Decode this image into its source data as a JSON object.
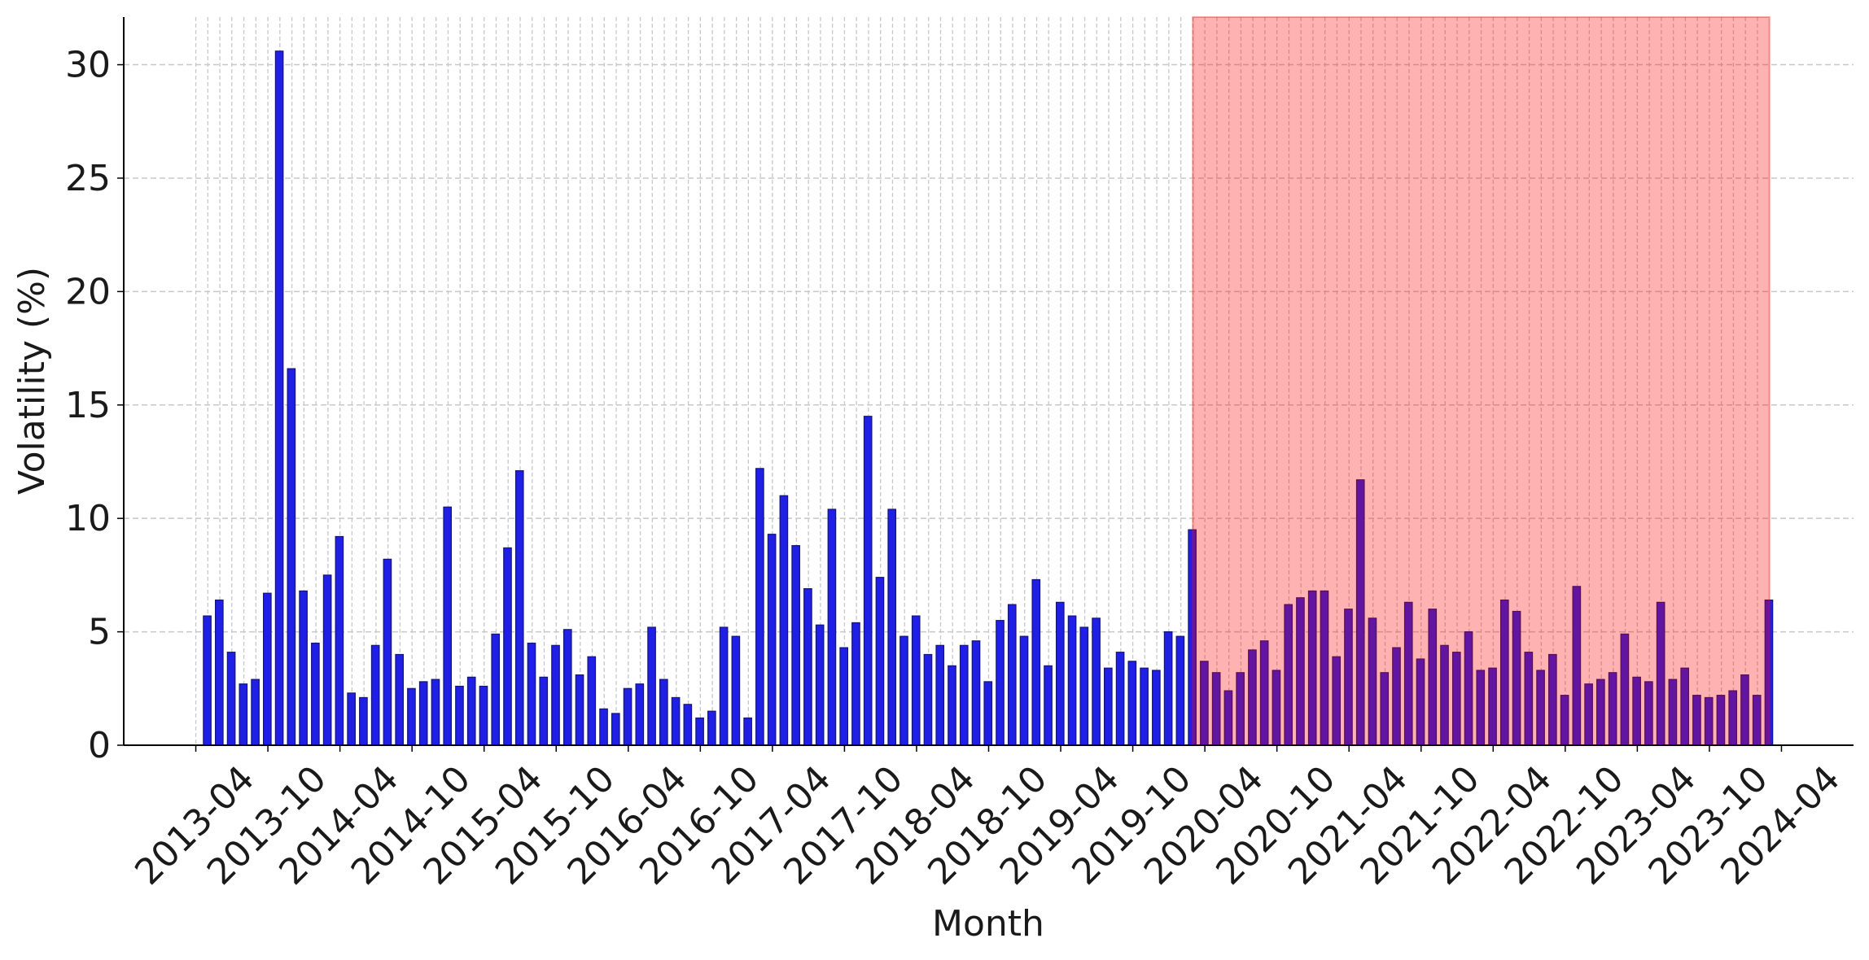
{
  "chart_data": {
    "type": "bar",
    "x_label": "Month",
    "y_label": "Volatility (%)",
    "x": [
      "2013-04",
      "2013-05",
      "2013-06",
      "2013-07",
      "2013-08",
      "2013-09",
      "2013-10",
      "2013-11",
      "2013-12",
      "2014-01",
      "2014-02",
      "2014-03",
      "2014-04",
      "2014-05",
      "2014-06",
      "2014-07",
      "2014-08",
      "2014-09",
      "2014-10",
      "2014-11",
      "2014-12",
      "2015-01",
      "2015-02",
      "2015-03",
      "2015-04",
      "2015-05",
      "2015-06",
      "2015-07",
      "2015-08",
      "2015-09",
      "2015-10",
      "2015-11",
      "2015-12",
      "2016-01",
      "2016-02",
      "2016-03",
      "2016-04",
      "2016-05",
      "2016-06",
      "2016-07",
      "2016-08",
      "2016-09",
      "2016-10",
      "2016-11",
      "2016-12",
      "2017-01",
      "2017-02",
      "2017-03",
      "2017-04",
      "2017-05",
      "2017-06",
      "2017-07",
      "2017-08",
      "2017-09",
      "2017-10",
      "2017-11",
      "2017-12",
      "2018-01",
      "2018-02",
      "2018-03",
      "2018-04",
      "2018-05",
      "2018-06",
      "2018-07",
      "2018-08",
      "2018-09",
      "2018-10",
      "2018-11",
      "2018-12",
      "2019-01",
      "2019-02",
      "2019-03",
      "2019-04",
      "2019-05",
      "2019-06",
      "2019-07",
      "2019-08",
      "2019-09",
      "2019-10",
      "2019-11",
      "2019-12",
      "2020-01",
      "2020-02",
      "2020-03",
      "2020-04",
      "2020-05",
      "2020-06",
      "2020-07",
      "2020-08",
      "2020-09",
      "2020-10",
      "2020-11",
      "2020-12",
      "2021-01",
      "2021-02",
      "2021-03",
      "2021-04",
      "2021-05",
      "2021-06",
      "2021-07",
      "2021-08",
      "2021-09",
      "2021-10",
      "2021-11",
      "2021-12",
      "2022-01",
      "2022-02",
      "2022-03",
      "2022-04",
      "2022-05",
      "2022-06",
      "2022-07",
      "2022-08",
      "2022-09",
      "2022-10",
      "2022-11",
      "2022-12",
      "2023-01",
      "2023-02",
      "2023-03",
      "2023-04",
      "2023-05",
      "2023-06",
      "2023-07",
      "2023-08",
      "2023-09",
      "2023-10",
      "2023-11",
      "2023-12",
      "2024-01",
      "2024-02"
    ],
    "values": [
      5.7,
      6.4,
      4.1,
      2.7,
      2.9,
      6.7,
      30.6,
      16.6,
      6.8,
      4.5,
      7.5,
      9.2,
      2.3,
      2.1,
      4.4,
      8.2,
      4.0,
      2.5,
      2.8,
      2.9,
      10.5,
      2.6,
      3.0,
      2.6,
      4.9,
      8.7,
      12.1,
      4.5,
      3.0,
      4.4,
      5.1,
      3.1,
      3.9,
      1.6,
      1.4,
      2.5,
      2.7,
      5.2,
      2.9,
      2.1,
      1.8,
      1.2,
      1.5,
      5.2,
      4.8,
      1.2,
      12.2,
      9.3,
      11.0,
      8.8,
      6.9,
      5.3,
      10.4,
      4.3,
      5.4,
      14.5,
      7.4,
      10.4,
      4.8,
      5.7,
      4.0,
      4.4,
      3.5,
      4.4,
      4.6,
      2.8,
      5.5,
      6.2,
      4.8,
      7.3,
      3.5,
      6.3,
      5.7,
      5.2,
      5.6,
      3.4,
      4.1,
      3.7,
      3.4,
      3.3,
      5.0,
      4.8,
      9.5,
      3.7,
      3.2,
      2.4,
      3.2,
      4.2,
      4.6,
      3.3,
      6.2,
      6.5,
      6.8,
      6.8,
      3.9,
      6.0,
      11.7,
      5.6,
      3.2,
      4.3,
      6.3,
      3.8,
      6.0,
      4.4,
      4.1,
      5.0,
      3.3,
      3.4,
      6.4,
      5.9,
      4.1,
      3.3,
      4.0,
      2.2,
      7.0,
      2.7,
      2.9,
      3.2,
      4.9,
      3.0,
      2.8,
      6.3,
      2.9,
      3.4,
      2.2,
      2.1,
      2.2,
      2.4,
      3.1,
      2.2,
      6.4
    ],
    "color": "#1f1fe6",
    "xlim": [
      "2012-10",
      "2024-10"
    ],
    "xticks": [
      "2013-04",
      "2013-10",
      "2014-04",
      "2014-10",
      "2015-04",
      "2015-10",
      "2016-04",
      "2016-10",
      "2017-04",
      "2017-10",
      "2018-04",
      "2018-10",
      "2019-04",
      "2019-10",
      "2020-04",
      "2020-10",
      "2021-04",
      "2021-10",
      "2022-04",
      "2022-10",
      "2023-04",
      "2023-10",
      "2024-04"
    ],
    "ylim": [
      0,
      32.1
    ],
    "yticks": [
      0,
      5,
      10,
      15,
      20,
      25,
      30
    ],
    "grid": true,
    "highlight": {
      "start": "2020-03",
      "end": "2024-03",
      "color": "#ff0000"
    }
  }
}
